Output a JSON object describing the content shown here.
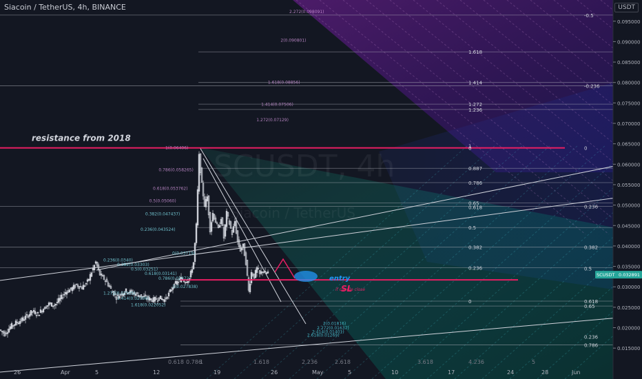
{
  "header": {
    "title": "Siacoin / TetherUS, 4h, BINANCE",
    "currency": "USDT"
  },
  "watermark": {
    "symbol": "SCUSDT, 4h",
    "name": "Siacoin / TetherUS"
  },
  "colors": {
    "background": "#131722",
    "resistance": "#e91e63",
    "candle": "#d1d4dc",
    "entry": "#2196f3",
    "fan_purple": "#9c27b0",
    "fan_teal": "#26a69a",
    "price_badge": "#26a69a"
  },
  "annotations": {
    "resistance": "resistance from 2018",
    "entry": "entry",
    "sl": "SL",
    "sl_note": "if candle close"
  },
  "price_badge": {
    "symbol": "SCUSDT",
    "value": "0.032891"
  },
  "chart_data": {
    "type": "candlestick",
    "title": "Siacoin / TetherUS, 4h, BINANCE",
    "y_ticks": [
      "0.095000",
      "0.090000",
      "0.085000",
      "0.080000",
      "0.075000",
      "0.070000",
      "0.065000",
      "0.060000",
      "0.055000",
      "0.050000",
      "0.045000",
      "0.040000",
      "0.035000",
      "0.030000",
      "0.025000",
      "0.020000",
      "0.015000"
    ],
    "ylim": [
      0.0125,
      0.0985
    ],
    "x_ticks": [
      "26",
      "Apr",
      "5",
      "12",
      "19",
      "26",
      "May",
      "5",
      "10",
      "17",
      "24",
      "28",
      "Jun"
    ],
    "resistance_level": 0.064,
    "sl_level": 0.0317,
    "last_price": 0.032891,
    "price_path": [
      [
        0,
        0.0195
      ],
      [
        8,
        0.0185
      ],
      [
        16,
        0.0202
      ],
      [
        24,
        0.0212
      ],
      [
        32,
        0.0218
      ],
      [
        40,
        0.0228
      ],
      [
        48,
        0.024
      ],
      [
        56,
        0.0233
      ],
      [
        64,
        0.0247
      ],
      [
        72,
        0.0258
      ],
      [
        80,
        0.0255
      ],
      [
        88,
        0.027
      ],
      [
        96,
        0.0287
      ],
      [
        104,
        0.0294
      ],
      [
        112,
        0.0305
      ],
      [
        120,
        0.0298
      ],
      [
        128,
        0.0312
      ],
      [
        136,
        0.0344
      ],
      [
        140,
        0.036
      ],
      [
        146,
        0.033
      ],
      [
        152,
        0.032
      ],
      [
        158,
        0.0306
      ],
      [
        164,
        0.0288
      ],
      [
        170,
        0.0275
      ],
      [
        176,
        0.0282
      ],
      [
        184,
        0.029
      ],
      [
        192,
        0.0286
      ],
      [
        200,
        0.0281
      ],
      [
        208,
        0.0276
      ],
      [
        216,
        0.0271
      ],
      [
        224,
        0.0268
      ],
      [
        232,
        0.0273
      ],
      [
        240,
        0.0268
      ],
      [
        246,
        0.0282
      ],
      [
        252,
        0.0301
      ],
      [
        258,
        0.0311
      ],
      [
        264,
        0.032
      ],
      [
        270,
        0.0313
      ],
      [
        276,
        0.032
      ],
      [
        282,
        0.036
      ],
      [
        286,
        0.045
      ],
      [
        290,
        0.062
      ],
      [
        294,
        0.055
      ],
      [
        298,
        0.05
      ],
      [
        302,
        0.052
      ],
      [
        306,
        0.044
      ],
      [
        310,
        0.048
      ],
      [
        314,
        0.046
      ],
      [
        318,
        0.044
      ],
      [
        322,
        0.047
      ],
      [
        326,
        0.042
      ],
      [
        330,
        0.048
      ],
      [
        334,
        0.0455
      ],
      [
        338,
        0.043
      ],
      [
        342,
        0.046
      ],
      [
        346,
        0.041
      ],
      [
        350,
        0.039
      ],
      [
        354,
        0.04
      ],
      [
        358,
        0.036
      ],
      [
        362,
        0.029
      ],
      [
        366,
        0.0335
      ],
      [
        370,
        0.0325
      ],
      [
        374,
        0.0345
      ],
      [
        378,
        0.033
      ],
      [
        382,
        0.034
      ],
      [
        386,
        0.0333
      ],
      [
        390,
        0.0335
      ]
    ],
    "fib_retracement_right": [
      {
        "label": "0",
        "value": 0.064
      },
      {
        "label": "0.887",
        "value": 0.059
      },
      {
        "label": "0.786",
        "value": 0.0555
      },
      {
        "label": "0.65",
        "value": 0.0505
      },
      {
        "label": "0.618",
        "value": 0.0495
      },
      {
        "label": "0.5",
        "value": 0.0445
      },
      {
        "label": "0.382",
        "value": 0.0397
      },
      {
        "label": "0.236",
        "value": 0.0347
      },
      {
        "label": "0",
        "value": 0.0265
      },
      {
        "label": "1",
        "value": 0.0645
      },
      {
        "label": "1.272",
        "value": 0.0747
      },
      {
        "label": "1.236",
        "value": 0.0734
      },
      {
        "label": "1.414",
        "value": 0.08
      },
      {
        "label": "1.618",
        "value": 0.0875
      }
    ],
    "fib_labels_left": [
      {
        "text": "2.272(0.098091)",
        "value": 0.0975
      },
      {
        "text": "2(0.090801)",
        "value": 0.0905
      },
      {
        "text": "1.618(0.08856)",
        "value": 0.0802
      },
      {
        "text": "1.414(0.07506)",
        "value": 0.0748
      },
      {
        "text": "1.272(0.07129)",
        "value": 0.071
      },
      {
        "text": "1(0.06406)",
        "value": 0.0642
      },
      {
        "text": "0.786(0.058265)",
        "value": 0.0588
      },
      {
        "text": "0.618(0.053762)",
        "value": 0.0542
      },
      {
        "text": "0.5(0.05060)",
        "value": 0.0512
      },
      {
        "text": "0.382(0.047437)",
        "value": 0.048
      },
      {
        "text": "0.236(0.043524)",
        "value": 0.0442
      },
      {
        "text": "0(0.03719)",
        "value": 0.0384
      },
      {
        "text": "0.236(0.0340)",
        "value": 0.0367
      },
      {
        "text": "0.382(0.03303)",
        "value": 0.0356
      },
      {
        "text": "0.5(0.03251)",
        "value": 0.0345
      },
      {
        "text": "0.618(0.03141)",
        "value": 0.0334
      },
      {
        "text": "0.786(0.02872)",
        "value": 0.0322
      },
      {
        "text": "1(0.027838)",
        "value": 0.0302
      },
      {
        "text": "1.272(0.02505)",
        "value": 0.0286
      },
      {
        "text": "1.414(0.02396)",
        "value": 0.0273
      },
      {
        "text": "1.618(0.022052)",
        "value": 0.0257
      },
      {
        "text": "2(0.01816)",
        "value": 0.0212
      },
      {
        "text": "2.272(0.01637)",
        "value": 0.0201
      },
      {
        "text": "2.414(0.01401)",
        "value": 0.0192
      },
      {
        "text": "2.618(0.01269)",
        "value": 0.0183
      }
    ],
    "fan_right_labels": [
      {
        "label": "-0.5",
        "value": 0.0965
      },
      {
        "label": "-0.236",
        "value": 0.0792
      },
      {
        "label": "0",
        "value": 0.064
      },
      {
        "label": "0.236",
        "value": 0.0497
      },
      {
        "label": "0.382",
        "value": 0.0397
      },
      {
        "label": "0.5",
        "value": 0.0345
      },
      {
        "label": "0.618",
        "value": 0.0265
      },
      {
        "label": "0.65",
        "value": 0.0253
      },
      {
        "label": "0.236",
        "value": 0.0178
      },
      {
        "label": "0.786",
        "value": 0.0158
      }
    ],
    "time_fib_labels": [
      "0.618",
      "0.786",
      "1",
      "1.618",
      "2.236",
      "2.618",
      "3.618",
      "4.236",
      "5"
    ]
  }
}
